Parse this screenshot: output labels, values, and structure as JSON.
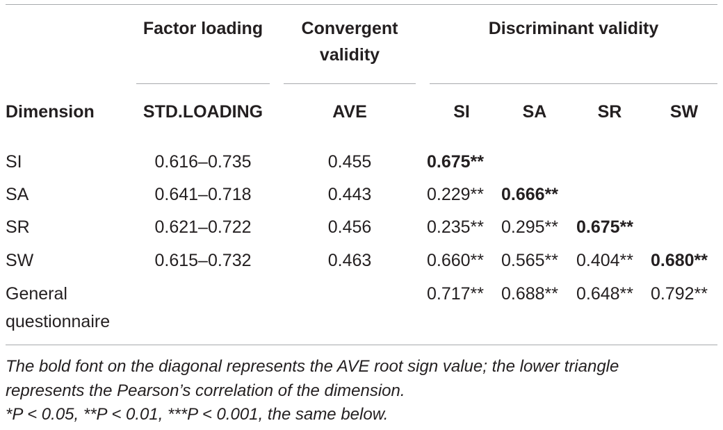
{
  "table": {
    "header": {
      "group_factor_loading": "Factor loading",
      "group_convergent_line1": "Convergent",
      "group_convergent_line2": "validity",
      "group_discriminant": "Discriminant validity",
      "col_dimension": "Dimension",
      "col_std_loading": "STD.LOADING",
      "col_ave": "AVE",
      "col_si": "SI",
      "col_sa": "SA",
      "col_sr": "SR",
      "col_sw": "SW"
    },
    "rows": [
      {
        "dimension": "SI",
        "std_loading": "0.616–0.735",
        "ave": "0.455",
        "si": "0.675**",
        "sa": "",
        "sr": "",
        "sw": ""
      },
      {
        "dimension": "SA",
        "std_loading": "0.641–0.718",
        "ave": "0.443",
        "si": "0.229**",
        "sa": "0.666**",
        "sr": "",
        "sw": ""
      },
      {
        "dimension": "SR",
        "std_loading": "0.621–0.722",
        "ave": "0.456",
        "si": "0.235**",
        "sa": "0.295**",
        "sr": "0.675**",
        "sw": ""
      },
      {
        "dimension": "SW",
        "std_loading": "0.615–0.732",
        "ave": "0.463",
        "si": "0.660**",
        "sa": "0.565**",
        "sr": "0.404**",
        "sw": "0.680**"
      },
      {
        "dimension_line1": "General",
        "dimension_line2": "questionnaire",
        "std_loading": "",
        "ave": "",
        "si": "0.717**",
        "sa": "0.688**",
        "sr": "0.648**",
        "sw": "0.792**"
      }
    ],
    "footnotes": {
      "line1": "The bold font on the diagonal represents the AVE root sign value; the lower triangle",
      "line2": "represents the Pearson’s correlation of the dimension.",
      "line3": "*P < 0.05, **P < 0.01, ***P < 0.001, the same below."
    }
  }
}
